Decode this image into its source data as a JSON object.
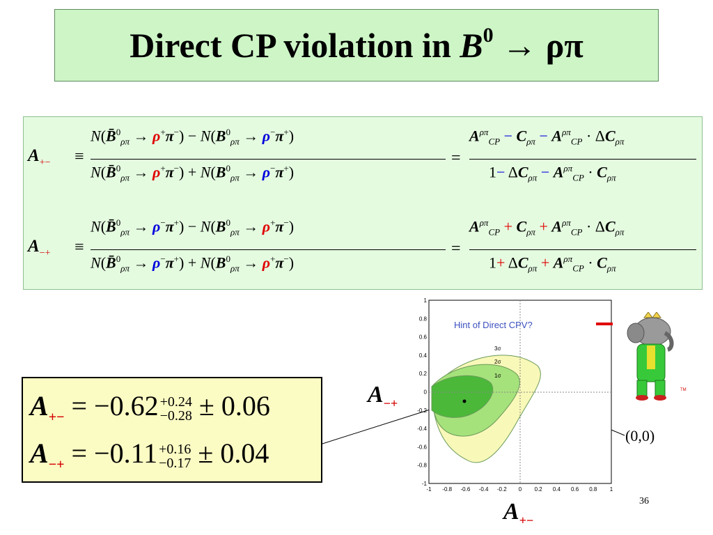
{
  "title": {
    "prefix": "Direct CP violation in ",
    "b": "B",
    "sup": "0",
    "arrow": " → ρπ"
  },
  "formulas": {
    "row1": {
      "lhs": "A",
      "lhs_sub": "+−",
      "equiv": "≡",
      "num": "N(B̄⁰ρπ → ρ⁺π⁻) − N(B⁰ρπ → ρ⁻π⁺)",
      "den": "N(B̄⁰ρπ → ρ⁺π⁻) + N(B⁰ρπ → ρ⁻π⁺)",
      "rhs_num": "ACP − Cρπ − ACP · ΔCρπ",
      "rhs_den": "1 − ΔCρπ − ACP · Cρπ"
    },
    "row2": {
      "lhs": "A",
      "lhs_sub": "−+",
      "equiv": "≡",
      "num": "N(B̄⁰ρπ → ρ⁻π⁺) − N(B⁰ρπ → ρ⁺π⁻)",
      "den": "N(B̄⁰ρπ → ρ⁻π⁺) + N(B⁰ρπ → ρ⁺π⁻)",
      "rhs_num": "ACP + Cρπ + ACP · ΔCρπ",
      "rhs_den": "1 + ΔCρπ + ACP · Cρπ"
    }
  },
  "results": [
    {
      "lhs": "A",
      "sub": "+−",
      "eq": "= −0.62",
      "up": "+0.24",
      "down": "−0.28",
      "err": "± 0.06"
    },
    {
      "lhs": "A",
      "sub": "−+",
      "eq": "= −0.11",
      "up": "+0.16",
      "down": "−0.17",
      "err": "± 0.04"
    }
  ],
  "plot": {
    "hint": "Hint of Direct CPV?",
    "contour_labels": [
      "3σ",
      "2σ",
      "1σ"
    ],
    "x_ticks": [
      "-1",
      "-0.8",
      "-0.6",
      "-0.4",
      "-0.2",
      "0",
      "0.2",
      "0.4",
      "0.6",
      "0.8",
      "1"
    ],
    "y_ticks": [
      "1",
      "0.8",
      "0.6",
      "0.4",
      "0.2",
      "0",
      "-0.2",
      "-0.4",
      "-0.6",
      "-0.8",
      "-1"
    ],
    "y_axis_label": "A",
    "y_axis_sub": "−+",
    "x_axis_label": "A",
    "x_axis_sub": "+−",
    "origin_label": "(0,0)",
    "tm": "TM",
    "colors": {
      "c3": "#f8f8b8",
      "c2": "#a6e27c",
      "c1": "#4bb83a",
      "outline": "#6a9a5a",
      "hint": "#3a4fbf"
    }
  },
  "slide_number": "36"
}
